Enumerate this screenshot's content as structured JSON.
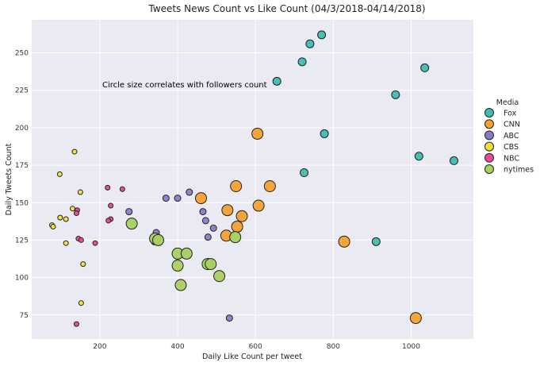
{
  "chart_data": {
    "type": "scatter",
    "title": "Tweets News Count vs Like Count (04/3/2018-04/14/2018)",
    "xlabel": "Daily Like Count per tweet",
    "ylabel": "Daily Tweets Count",
    "xlim": [
      25,
      1160
    ],
    "ylim": [
      59,
      272
    ],
    "xticks": [
      200,
      400,
      600,
      800,
      1000
    ],
    "yticks": [
      75,
      100,
      125,
      150,
      175,
      200,
      225,
      250
    ],
    "grid": true,
    "legend_title": "Media",
    "legend_position": "right",
    "annotation": "Circle size correlates with followers count",
    "series": [
      {
        "name": "Fox",
        "color": "#3fbcb0",
        "size": 5,
        "points": [
          {
            "x": 770,
            "y": 262
          },
          {
            "x": 740,
            "y": 256
          },
          {
            "x": 720,
            "y": 244
          },
          {
            "x": 655,
            "y": 231
          },
          {
            "x": 1035,
            "y": 240
          },
          {
            "x": 960,
            "y": 222
          },
          {
            "x": 777,
            "y": 196
          },
          {
            "x": 1020,
            "y": 181
          },
          {
            "x": 1110,
            "y": 178
          },
          {
            "x": 725,
            "y": 170
          },
          {
            "x": 910,
            "y": 124
          }
        ]
      },
      {
        "name": "CNN",
        "color": "#f5a030",
        "size": 7,
        "points": [
          {
            "x": 605,
            "y": 196
          },
          {
            "x": 550,
            "y": 161
          },
          {
            "x": 637,
            "y": 161
          },
          {
            "x": 460,
            "y": 153
          },
          {
            "x": 528,
            "y": 145
          },
          {
            "x": 608,
            "y": 148
          },
          {
            "x": 565,
            "y": 141
          },
          {
            "x": 553,
            "y": 134
          },
          {
            "x": 525,
            "y": 128
          },
          {
            "x": 828,
            "y": 124
          },
          {
            "x": 1012,
            "y": 73
          }
        ]
      },
      {
        "name": "ABC",
        "color": "#8b7cc8",
        "size": 4,
        "points": [
          {
            "x": 430,
            "y": 157
          },
          {
            "x": 370,
            "y": 153
          },
          {
            "x": 400,
            "y": 153
          },
          {
            "x": 275,
            "y": 144
          },
          {
            "x": 465,
            "y": 144
          },
          {
            "x": 472,
            "y": 138
          },
          {
            "x": 492,
            "y": 133
          },
          {
            "x": 345,
            "y": 130
          },
          {
            "x": 478,
            "y": 127
          },
          {
            "x": 340,
            "y": 124
          },
          {
            "x": 533,
            "y": 73
          }
        ]
      },
      {
        "name": "CBS",
        "color": "#f6e23a",
        "size": 3,
        "points": [
          {
            "x": 135,
            "y": 184
          },
          {
            "x": 97,
            "y": 169
          },
          {
            "x": 150,
            "y": 157
          },
          {
            "x": 130,
            "y": 146
          },
          {
            "x": 98,
            "y": 140
          },
          {
            "x": 113,
            "y": 139
          },
          {
            "x": 77,
            "y": 135
          },
          {
            "x": 80,
            "y": 134
          },
          {
            "x": 113,
            "y": 123
          },
          {
            "x": 157,
            "y": 109
          },
          {
            "x": 152,
            "y": 83
          }
        ]
      },
      {
        "name": "NBC",
        "color": "#e8489a",
        "size": 3,
        "points": [
          {
            "x": 220,
            "y": 160
          },
          {
            "x": 258,
            "y": 159
          },
          {
            "x": 228,
            "y": 148
          },
          {
            "x": 142,
            "y": 145
          },
          {
            "x": 140,
            "y": 143
          },
          {
            "x": 228,
            "y": 139
          },
          {
            "x": 222,
            "y": 138
          },
          {
            "x": 145,
            "y": 126
          },
          {
            "x": 152,
            "y": 125
          },
          {
            "x": 188,
            "y": 123
          },
          {
            "x": 140,
            "y": 69
          }
        ]
      },
      {
        "name": "nytimes",
        "color": "#a8d060",
        "size": 7,
        "points": [
          {
            "x": 282,
            "y": 136
          },
          {
            "x": 342,
            "y": 126
          },
          {
            "x": 350,
            "y": 125
          },
          {
            "x": 400,
            "y": 116
          },
          {
            "x": 423,
            "y": 116
          },
          {
            "x": 477,
            "y": 109
          },
          {
            "x": 485,
            "y": 109
          },
          {
            "x": 400,
            "y": 108
          },
          {
            "x": 507,
            "y": 101
          },
          {
            "x": 408,
            "y": 95
          },
          {
            "x": 548,
            "y": 127
          }
        ]
      }
    ]
  }
}
